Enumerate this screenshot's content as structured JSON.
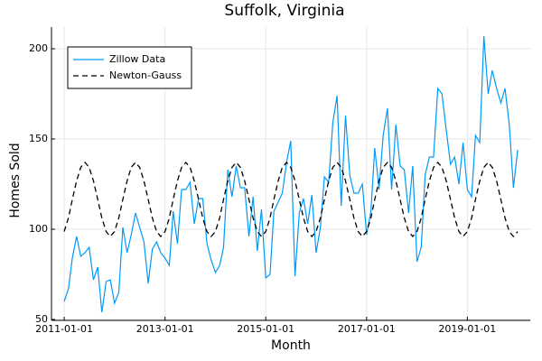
{
  "chart_data": {
    "type": "line",
    "title": "Suffolk, Virginia",
    "x_label": "Month",
    "y_label": "Homes Sold",
    "x": [
      "2011-01-01",
      "2011-02-01",
      "2011-03-01",
      "2011-04-01",
      "2011-05-01",
      "2011-06-01",
      "2011-07-01",
      "2011-08-01",
      "2011-09-01",
      "2011-10-01",
      "2011-11-01",
      "2011-12-01",
      "2012-01-01",
      "2012-02-01",
      "2012-03-01",
      "2012-04-01",
      "2012-05-01",
      "2012-06-01",
      "2012-07-01",
      "2012-08-01",
      "2012-09-01",
      "2012-10-01",
      "2012-11-01",
      "2012-12-01",
      "2013-01-01",
      "2013-02-01",
      "2013-03-01",
      "2013-04-01",
      "2013-05-01",
      "2013-06-01",
      "2013-07-01",
      "2013-08-01",
      "2013-09-01",
      "2013-10-01",
      "2013-11-01",
      "2013-12-01",
      "2014-01-01",
      "2014-02-01",
      "2014-03-01",
      "2014-04-01",
      "2014-05-01",
      "2014-06-01",
      "2014-07-01",
      "2014-08-01",
      "2014-09-01",
      "2014-10-01",
      "2014-11-01",
      "2014-12-01",
      "2015-01-01",
      "2015-02-01",
      "2015-03-01",
      "2015-04-01",
      "2015-05-01",
      "2015-06-01",
      "2015-07-01",
      "2015-08-01",
      "2015-09-01",
      "2015-10-01",
      "2015-11-01",
      "2015-12-01",
      "2016-01-01",
      "2016-02-01",
      "2016-03-01",
      "2016-04-01",
      "2016-05-01",
      "2016-06-01",
      "2016-07-01",
      "2016-08-01",
      "2016-09-01",
      "2016-10-01",
      "2016-11-01",
      "2016-12-01",
      "2017-01-01",
      "2017-02-01",
      "2017-03-01",
      "2017-04-01",
      "2017-05-01",
      "2017-06-01",
      "2017-07-01",
      "2017-08-01",
      "2017-09-01",
      "2017-10-01",
      "2017-11-01",
      "2017-12-01",
      "2018-01-01",
      "2018-02-01",
      "2018-03-01",
      "2018-04-01",
      "2018-05-01",
      "2018-06-01",
      "2018-07-01",
      "2018-08-01",
      "2018-09-01",
      "2018-10-01",
      "2018-11-01",
      "2018-12-01",
      "2019-01-01",
      "2019-02-01",
      "2019-03-01",
      "2019-04-01",
      "2019-05-01",
      "2019-06-01",
      "2019-07-01",
      "2019-08-01",
      "2019-09-01",
      "2019-10-01",
      "2019-11-01",
      "2019-12-01",
      "2020-01-01"
    ],
    "series": [
      {
        "name": "Zillow Data",
        "color": "#009af9",
        "dash": false,
        "values": [
          60,
          67,
          84,
          96,
          85,
          87,
          90,
          72,
          79,
          54,
          71,
          72,
          59,
          65,
          101,
          87,
          97,
          109,
          101,
          93,
          70,
          89,
          93,
          87,
          84,
          80,
          110,
          92,
          122,
          122,
          126,
          103,
          117,
          117,
          92,
          83,
          76,
          80,
          90,
          133,
          118,
          135,
          123,
          123,
          96,
          118,
          88,
          111,
          73,
          75,
          110,
          115,
          120,
          137,
          149,
          74,
          109,
          117,
          103,
          119,
          87,
          101,
          129,
          126,
          159,
          174,
          113,
          163,
          130,
          120,
          120,
          125,
          97,
          110,
          145,
          122,
          152,
          167,
          122,
          158,
          135,
          133,
          109,
          135,
          82,
          90,
          130,
          140,
          140,
          178,
          175,
          155,
          136,
          140,
          125,
          148,
          122,
          118,
          152,
          148,
          207,
          175,
          188,
          178,
          170,
          178,
          158,
          123,
          144
        ]
      },
      {
        "name": "Newton-Gauss",
        "color": "#000000",
        "dash": true,
        "values": [
          98.7,
          106.3,
          116.5,
          126.8,
          134.3,
          137,
          134.3,
          126.8,
          116.5,
          106.3,
          98.7,
          96,
          98.7,
          106.3,
          116.5,
          126.8,
          134.3,
          137,
          134.3,
          126.8,
          116.5,
          106.3,
          98.7,
          96,
          98.7,
          106.3,
          116.5,
          126.8,
          134.3,
          137,
          134.3,
          126.8,
          116.5,
          106.3,
          98.7,
          96,
          98.7,
          106.3,
          116.5,
          126.8,
          134.3,
          137,
          134.3,
          126.8,
          116.5,
          106.3,
          98.7,
          96,
          98.7,
          106.3,
          116.5,
          126.8,
          134.3,
          137,
          134.3,
          126.8,
          116.5,
          106.3,
          98.7,
          96,
          98.7,
          106.3,
          116.5,
          126.8,
          134.3,
          137,
          134.3,
          126.8,
          116.5,
          106.3,
          98.7,
          96,
          98.7,
          106.3,
          116.5,
          126.8,
          134.3,
          137,
          134.3,
          126.8,
          116.5,
          106.3,
          98.7,
          96,
          98.7,
          106.3,
          116.5,
          126.8,
          134.3,
          137,
          134.3,
          126.8,
          116.5,
          106.3,
          98.7,
          96,
          98.7,
          106.3,
          116.5,
          126.8,
          134.3,
          137,
          134.3,
          126.8,
          116.5,
          106.3,
          98.7,
          96,
          98.7
        ]
      }
    ],
    "xlim": [
      "2010-10-01",
      "2020-04-01"
    ],
    "xticks": [
      "2011-01-01",
      "2013-01-01",
      "2015-01-01",
      "2017-01-01",
      "2019-01-01"
    ],
    "ylim": [
      49.5,
      212
    ],
    "yticks": [
      50,
      100,
      150,
      200
    ],
    "grid": true,
    "legend": "top-left"
  }
}
